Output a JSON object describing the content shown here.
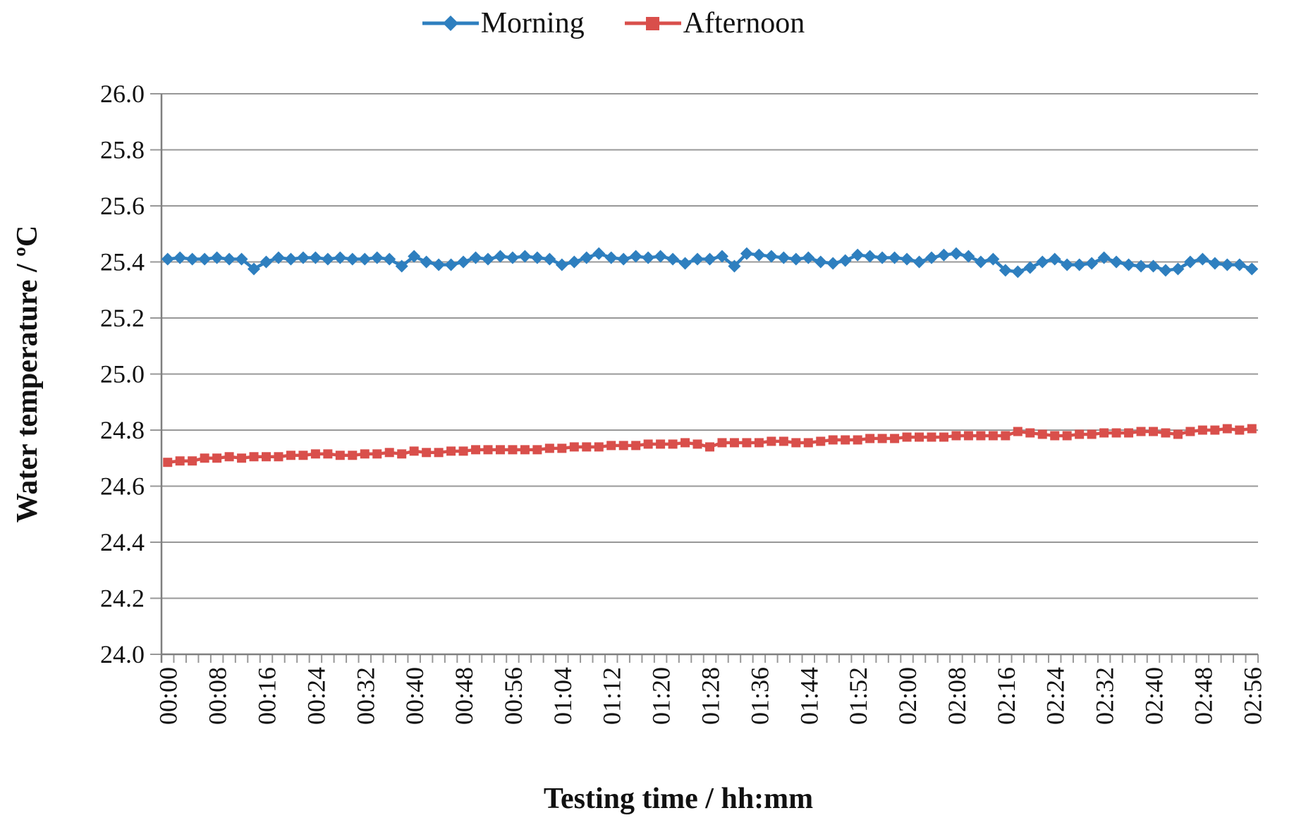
{
  "page": {
    "background": "#ffffff"
  },
  "legend": {
    "items": [
      {
        "label": "Morning",
        "color": "#2E7FBF",
        "marker": "diamond"
      },
      {
        "label": "Afternoon",
        "color": "#D94F4B",
        "marker": "square"
      }
    ]
  },
  "chart_data": {
    "type": "line",
    "title": "",
    "xlabel": "Testing time / hh:mm",
    "ylabel": "Water temperature / ºC",
    "ylim": [
      24.0,
      26.0
    ],
    "ytick_step": 0.2,
    "ytick_labels": [
      "24.0",
      "24.2",
      "24.4",
      "24.6",
      "24.8",
      "25.0",
      "25.2",
      "25.4",
      "25.6",
      "25.8",
      "26.0"
    ],
    "xtick_every": 4,
    "xtick_labels": [
      "00:00",
      "00:08",
      "00:16",
      "00:24",
      "00:32",
      "00:40",
      "00:48",
      "00:56",
      "01:04",
      "01:12",
      "01:20",
      "01:28",
      "01:36",
      "01:44",
      "01:52",
      "02:00",
      "02:08",
      "02:16",
      "02:24",
      "02:32",
      "02:40",
      "02:48",
      "02:56"
    ],
    "grid": true,
    "legend_position": "top",
    "grid_color": "#989898",
    "axis_color": "#7F7F7F",
    "text_color": "#111111",
    "x": [
      "00:00",
      "00:02",
      "00:04",
      "00:06",
      "00:08",
      "00:10",
      "00:12",
      "00:14",
      "00:16",
      "00:18",
      "00:20",
      "00:22",
      "00:24",
      "00:26",
      "00:28",
      "00:30",
      "00:32",
      "00:34",
      "00:36",
      "00:38",
      "00:40",
      "00:42",
      "00:44",
      "00:46",
      "00:48",
      "00:50",
      "00:52",
      "00:54",
      "00:56",
      "00:58",
      "01:00",
      "01:02",
      "01:04",
      "01:06",
      "01:08",
      "01:10",
      "01:12",
      "01:14",
      "01:16",
      "01:18",
      "01:20",
      "01:22",
      "01:24",
      "01:26",
      "01:28",
      "01:30",
      "01:32",
      "01:34",
      "01:36",
      "01:38",
      "01:40",
      "01:42",
      "01:44",
      "01:46",
      "01:48",
      "01:50",
      "01:52",
      "01:54",
      "01:56",
      "01:58",
      "02:00",
      "02:02",
      "02:04",
      "02:06",
      "02:08",
      "02:10",
      "02:12",
      "02:14",
      "02:16",
      "02:18",
      "02:20",
      "02:22",
      "02:24",
      "02:26",
      "02:28",
      "02:30",
      "02:32",
      "02:34",
      "02:36",
      "02:38",
      "02:40",
      "02:42",
      "02:44",
      "02:46",
      "02:48",
      "02:50",
      "02:52",
      "02:54",
      "02:56"
    ],
    "series": [
      {
        "name": "Morning",
        "color": "#2E7FBF",
        "marker": "diamond",
        "values": [
          25.41,
          25.415,
          25.41,
          25.41,
          25.415,
          25.41,
          25.41,
          25.375,
          25.4,
          25.415,
          25.41,
          25.415,
          25.415,
          25.41,
          25.415,
          25.41,
          25.41,
          25.415,
          25.41,
          25.385,
          25.42,
          25.4,
          25.39,
          25.39,
          25.4,
          25.415,
          25.41,
          25.42,
          25.415,
          25.42,
          25.415,
          25.41,
          25.39,
          25.4,
          25.415,
          25.43,
          25.415,
          25.41,
          25.42,
          25.415,
          25.42,
          25.41,
          25.395,
          25.41,
          25.41,
          25.42,
          25.385,
          25.43,
          25.425,
          25.42,
          25.415,
          25.41,
          25.415,
          25.4,
          25.395,
          25.405,
          25.425,
          25.42,
          25.415,
          25.415,
          25.41,
          25.4,
          25.415,
          25.425,
          25.43,
          25.42,
          25.4,
          25.41,
          25.37,
          25.365,
          25.38,
          25.4,
          25.41,
          25.39,
          25.39,
          25.395,
          25.415,
          25.4,
          25.39,
          25.385,
          25.385,
          25.37,
          25.375,
          25.4,
          25.41,
          25.395,
          25.39,
          25.39,
          25.375
        ]
      },
      {
        "name": "Afternoon",
        "color": "#D94F4B",
        "marker": "square",
        "values": [
          24.685,
          24.69,
          24.69,
          24.7,
          24.7,
          24.705,
          24.7,
          24.705,
          24.705,
          24.705,
          24.71,
          24.71,
          24.715,
          24.715,
          24.71,
          24.71,
          24.715,
          24.715,
          24.72,
          24.715,
          24.725,
          24.72,
          24.72,
          24.725,
          24.725,
          24.73,
          24.73,
          24.73,
          24.73,
          24.73,
          24.73,
          24.735,
          24.735,
          24.74,
          24.74,
          24.74,
          24.745,
          24.745,
          24.745,
          24.75,
          24.75,
          24.75,
          24.755,
          24.75,
          24.74,
          24.755,
          24.755,
          24.755,
          24.755,
          24.76,
          24.76,
          24.755,
          24.755,
          24.76,
          24.765,
          24.765,
          24.765,
          24.77,
          24.77,
          24.77,
          24.775,
          24.775,
          24.775,
          24.775,
          24.78,
          24.78,
          24.78,
          24.78,
          24.78,
          24.795,
          24.79,
          24.785,
          24.78,
          24.78,
          24.785,
          24.785,
          24.79,
          24.79,
          24.79,
          24.795,
          24.795,
          24.79,
          24.785,
          24.795,
          24.8,
          24.8,
          24.805,
          24.8,
          24.805
        ]
      }
    ]
  }
}
